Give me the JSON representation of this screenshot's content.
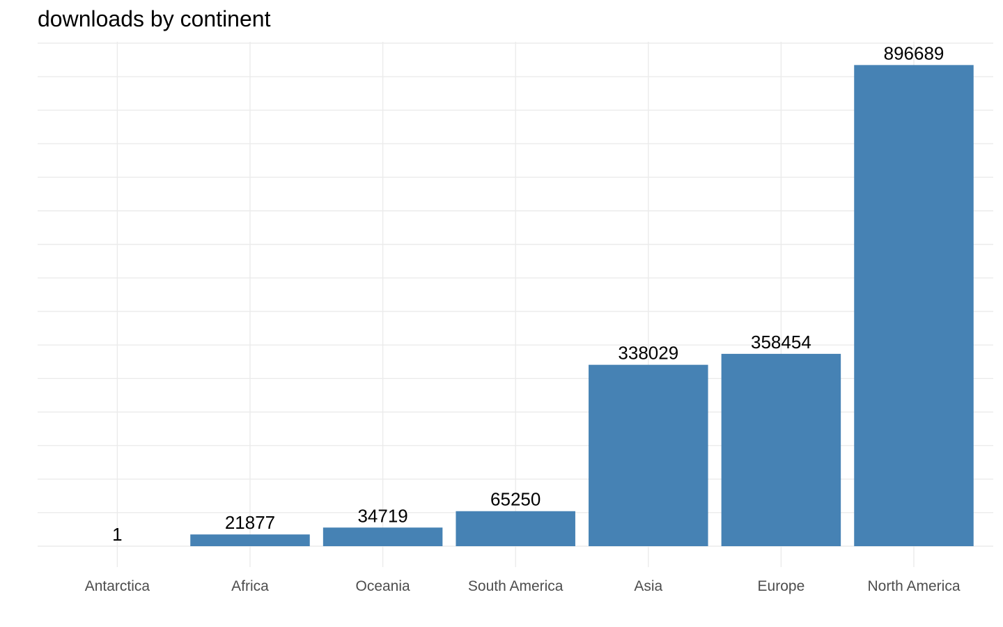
{
  "chart_data": {
    "type": "bar",
    "title": "downloads by continent",
    "xlabel": "",
    "ylabel": "",
    "categories": [
      "Antarctica",
      "Africa",
      "Oceania",
      "South America",
      "Asia",
      "Europe",
      "North America"
    ],
    "values": [
      1,
      21877,
      34719,
      65250,
      338029,
      358454,
      896689
    ],
    "ylim": [
      0,
      940000
    ],
    "y_axis_labels_visible": false,
    "grid": true,
    "bar_color": "#4682b4",
    "grid_color": "#ebebeb",
    "legend": "none"
  }
}
